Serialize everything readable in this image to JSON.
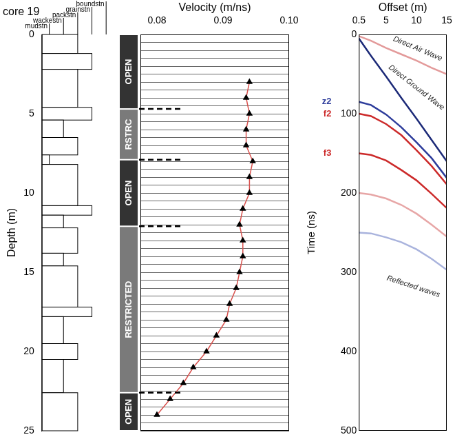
{
  "chart_data": [
    {
      "type": "strip",
      "title": "core 19",
      "categories": [
        "mudstn",
        "wackestn",
        "packstn",
        "grainstn",
        "boundstn"
      ],
      "intervals": [
        {
          "top": 0,
          "base": 1.2,
          "texture": "packstn"
        },
        {
          "top": 1.2,
          "base": 2.2,
          "texture": "grainstn"
        },
        {
          "top": 2.2,
          "base": 4.6,
          "texture": "packstn"
        },
        {
          "top": 4.6,
          "base": 5.4,
          "texture": "grainstn"
        },
        {
          "top": 5.4,
          "base": 6.5,
          "texture": "wackestn"
        },
        {
          "top": 6.5,
          "base": 7.6,
          "texture": "packstn"
        },
        {
          "top": 7.6,
          "base": 8.2,
          "texture": "mudstn"
        },
        {
          "top": 8.2,
          "base": 10.8,
          "texture": "packstn"
        },
        {
          "top": 10.8,
          "base": 11.4,
          "texture": "grainstn"
        },
        {
          "top": 11.4,
          "base": 12.2,
          "texture": "wackestn"
        },
        {
          "top": 12.2,
          "base": 13.8,
          "texture": "packstn"
        },
        {
          "top": 13.8,
          "base": 14.6,
          "texture": "wackestn"
        },
        {
          "top": 14.6,
          "base": 17.2,
          "texture": "packstn"
        },
        {
          "top": 17.2,
          "base": 17.8,
          "texture": "grainstn"
        },
        {
          "top": 17.8,
          "base": 19.5,
          "texture": "wackestn"
        },
        {
          "top": 19.5,
          "base": 20.5,
          "texture": "packstn"
        },
        {
          "top": 20.5,
          "base": 22.6,
          "texture": "wackestn"
        },
        {
          "top": 22.6,
          "base": 25,
          "texture": "packstn"
        }
      ],
      "ylabel": "Depth (m)",
      "ylim": [
        0,
        25
      ],
      "yticks": [
        0,
        5,
        10,
        15,
        20,
        25
      ],
      "tick_labels": "y"
    },
    {
      "type": "line",
      "xlabel": "Velocity (m/ns)",
      "xlim": [
        0.0775,
        0.1
      ],
      "xticks": [
        0.08,
        0.09,
        {
          "value": 0.1,
          "label": "0.10"
        }
      ],
      "ylim": [
        0,
        25
      ],
      "yticks": [
        0,
        0.5,
        1,
        1.5,
        2,
        2.5,
        3,
        3.5,
        4,
        4.5,
        5,
        5.5,
        6,
        6.5,
        7,
        7.5,
        8,
        8.5,
        9,
        9.5,
        10,
        10.5,
        11,
        11.5,
        12,
        12.5,
        13,
        13.5,
        14,
        14.5,
        15,
        15.5,
        16,
        16.5,
        17,
        17.5,
        18,
        18.5,
        19,
        19.5,
        20,
        20.5,
        21,
        21.5,
        22,
        22.5,
        23,
        23.5,
        24,
        24.5,
        25
      ],
      "tick_labels": "x",
      "grid": true,
      "facies": [
        {
          "label": "OPEN",
          "top": 0,
          "base": 4.7,
          "color": "#333333"
        },
        {
          "label": "RSTRC",
          "top": 4.7,
          "base": 7.9,
          "color": "#7a7a7a"
        },
        {
          "label": "OPEN",
          "top": 7.9,
          "base": 12.1,
          "color": "#333333"
        },
        {
          "label": "RESTRICTED",
          "top": 12.1,
          "base": 22.6,
          "color": "#7a7a7a"
        },
        {
          "label": "OPEN",
          "top": 22.6,
          "base": 25,
          "color": "#333333"
        }
      ],
      "series": [
        {
          "color": "#d9534f",
          "marker": "triangle",
          "x": [
            0.094,
            0.0935,
            0.094,
            0.0935,
            0.0935,
            0.0945,
            0.094,
            0.094,
            0.093,
            0.0925,
            0.093,
            0.093,
            0.0925,
            0.092,
            0.091,
            0.0905,
            0.089,
            0.0875,
            0.0855,
            0.084,
            0.082,
            0.08
          ],
          "y": [
            3,
            4,
            5,
            6,
            7,
            8,
            9,
            10,
            11,
            12,
            13,
            14,
            15,
            16,
            17,
            18,
            19,
            20,
            21,
            22,
            23,
            24
          ]
        }
      ]
    },
    {
      "type": "line",
      "xlabel": "Offset (m)",
      "ylabel": "Time (ns)",
      "xlim": [
        0.5,
        15
      ],
      "xticks": [
        0.5,
        5,
        10,
        15
      ],
      "ylim": [
        0,
        500
      ],
      "yticks": [
        0,
        100,
        200,
        300,
        400,
        500
      ],
      "grid": false,
      "x": [
        0.5,
        2.5,
        5,
        7.5,
        10,
        12.5,
        15
      ],
      "series": [
        {
          "color": "#e39a9a",
          "values": [
            2,
            8,
            17,
            25,
            33,
            42,
            50
          ]
        },
        {
          "color": "#1c2a78",
          "values": [
            5,
            27,
            53,
            80,
            106,
            133,
            160
          ]
        },
        {
          "color": "#2d3c9b",
          "values": [
            85,
            89,
            101,
            117,
            136,
            156,
            181
          ]
        },
        {
          "color": "#cc2a2a",
          "values": [
            100,
            103,
            113,
            127,
            146,
            166,
            189
          ]
        },
        {
          "color": "#cc2a2a",
          "values": [
            150,
            152,
            159,
            171,
            184,
            201,
            219
          ]
        },
        {
          "color": "#e7a6a6",
          "values": [
            200,
            202,
            207,
            215,
            226,
            240,
            255
          ]
        },
        {
          "color": "#a9b3dd",
          "values": [
            250,
            251,
            256,
            262,
            271,
            283,
            297
          ]
        }
      ],
      "annotations": [
        {
          "text": "Direct Air Wave",
          "x": 10.2,
          "y": 18
        },
        {
          "text": "Direct Ground Wave",
          "x": 10,
          "y": 67
        },
        {
          "text": "Reflected waves",
          "x": 9.5,
          "y": 318
        }
      ],
      "event_labels": [
        {
          "text": "z2",
          "y": 85,
          "color": "#2d3c9b"
        },
        {
          "text": "f2",
          "y": 100,
          "color": "#cc2a2a"
        },
        {
          "text": "f3",
          "y": 150,
          "color": "#cc2a2a"
        }
      ]
    }
  ]
}
